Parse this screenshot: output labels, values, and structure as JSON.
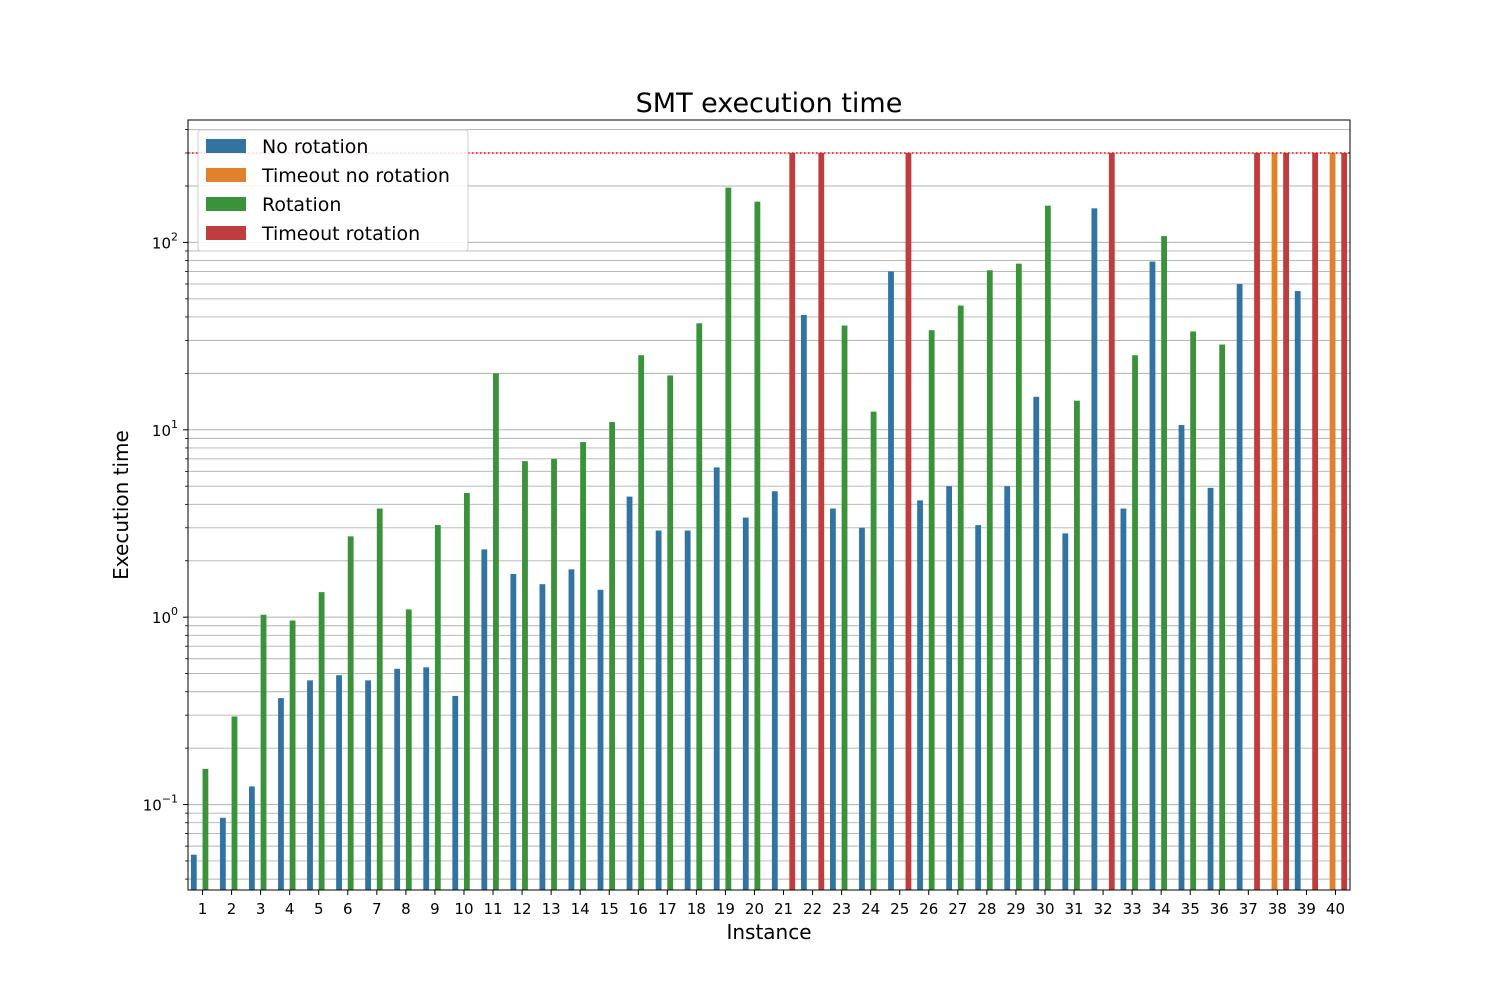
{
  "chart_data": {
    "type": "bar",
    "title": "SMT execution time",
    "xlabel": "Instance",
    "ylabel": "Execution time",
    "y_scale": "log",
    "ylim": [
      0.035,
      450
    ],
    "y_tick_values": [
      0.1,
      1,
      10,
      100
    ],
    "y_tick_labels": [
      {
        "base": "10",
        "exp": "−1"
      },
      {
        "base": "10",
        "exp": "0"
      },
      {
        "base": "10",
        "exp": "1"
      },
      {
        "base": "10",
        "exp": "2"
      }
    ],
    "grid": "horizontal major and minor",
    "legend_position": "top-left",
    "timeout_line": {
      "value": 300,
      "color": "#ff0000",
      "style": "dotted"
    },
    "categories": [
      "1",
      "2",
      "3",
      "4",
      "5",
      "6",
      "7",
      "8",
      "9",
      "10",
      "11",
      "12",
      "13",
      "14",
      "15",
      "16",
      "17",
      "18",
      "19",
      "20",
      "21",
      "22",
      "23",
      "24",
      "25",
      "26",
      "27",
      "28",
      "29",
      "30",
      "31",
      "32",
      "33",
      "34",
      "35",
      "36",
      "37",
      "38",
      "39",
      "40"
    ],
    "series": [
      {
        "name": "No rotation",
        "color": "#3274a1",
        "values": [
          0.054,
          0.085,
          0.125,
          0.37,
          0.46,
          0.49,
          0.46,
          0.53,
          0.54,
          0.38,
          2.3,
          1.7,
          1.5,
          1.8,
          1.4,
          4.4,
          2.9,
          2.9,
          6.3,
          3.4,
          4.7,
          41,
          3.8,
          3.0,
          70,
          4.2,
          5.0,
          3.1,
          5.0,
          15,
          2.8,
          152,
          3.8,
          79,
          10.6,
          4.9,
          60,
          null,
          55,
          null
        ]
      },
      {
        "name": "Timeout no rotation",
        "color": "#e1812c",
        "values": [
          null,
          null,
          null,
          null,
          null,
          null,
          null,
          null,
          null,
          null,
          null,
          null,
          null,
          null,
          null,
          null,
          null,
          null,
          null,
          null,
          null,
          null,
          null,
          null,
          null,
          null,
          null,
          null,
          null,
          null,
          null,
          null,
          null,
          null,
          null,
          null,
          null,
          300,
          null,
          300
        ]
      },
      {
        "name": "Rotation",
        "color": "#3a923a",
        "values": [
          0.155,
          0.295,
          1.03,
          0.96,
          1.36,
          2.7,
          3.8,
          1.1,
          3.1,
          4.6,
          20,
          6.8,
          7.0,
          8.6,
          11,
          25,
          19.5,
          37,
          196,
          165,
          null,
          null,
          36,
          12.5,
          null,
          34,
          46,
          71,
          77,
          157,
          14.3,
          null,
          25,
          108,
          33.5,
          28.5,
          null,
          null,
          null,
          null
        ]
      },
      {
        "name": "Timeout rotation",
        "color": "#c03d3e",
        "values": [
          null,
          null,
          null,
          null,
          null,
          null,
          null,
          null,
          null,
          null,
          null,
          null,
          null,
          null,
          null,
          null,
          null,
          null,
          null,
          null,
          300,
          300,
          null,
          null,
          300,
          null,
          null,
          null,
          null,
          null,
          null,
          300,
          null,
          null,
          null,
          null,
          300,
          300,
          300,
          300
        ]
      }
    ]
  }
}
